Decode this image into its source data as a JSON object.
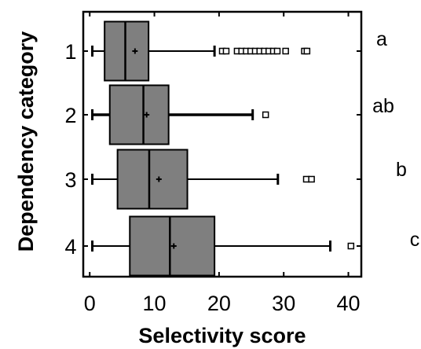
{
  "chart_data": {
    "type": "boxplot",
    "title": "",
    "xlabel": "Selectivity score",
    "ylabel": "Dependency category",
    "xlim": [
      -1,
      42
    ],
    "xticks": [
      0,
      10,
      20,
      30,
      40
    ],
    "box_fill": "#7f7f7f",
    "outline": "#000000",
    "categories": [
      {
        "label": "1",
        "group": "a",
        "whisker_low": 0.4,
        "q1": 2.3,
        "median": 5.5,
        "q3": 9.1,
        "whisker_high": 19.3,
        "mean": 7.0,
        "outliers": [
          20.5,
          21.1,
          22.8,
          23.5,
          24.2,
          24.9,
          25.6,
          26.3,
          27.0,
          27.7,
          28.4,
          29.0,
          30.3,
          33.2,
          33.6
        ]
      },
      {
        "label": "2",
        "group": "ab",
        "whisker_low": 0.4,
        "q1": 3.1,
        "median": 8.3,
        "q3": 12.2,
        "whisker_high": 25.2,
        "mean": 8.8,
        "outliers": [
          27.2
        ]
      },
      {
        "label": "3",
        "group": "b",
        "whisker_low": 0.4,
        "q1": 4.3,
        "median": 9.2,
        "q3": 15.1,
        "whisker_high": 29.1,
        "mean": 10.7,
        "outliers": [
          33.5,
          34.3
        ]
      },
      {
        "label": "4",
        "group": "c",
        "whisker_low": 0.4,
        "q1": 6.2,
        "median": 12.4,
        "q3": 19.3,
        "whisker_high": 37.2,
        "mean": 13.0,
        "outliers": [
          40.4
        ]
      }
    ]
  }
}
